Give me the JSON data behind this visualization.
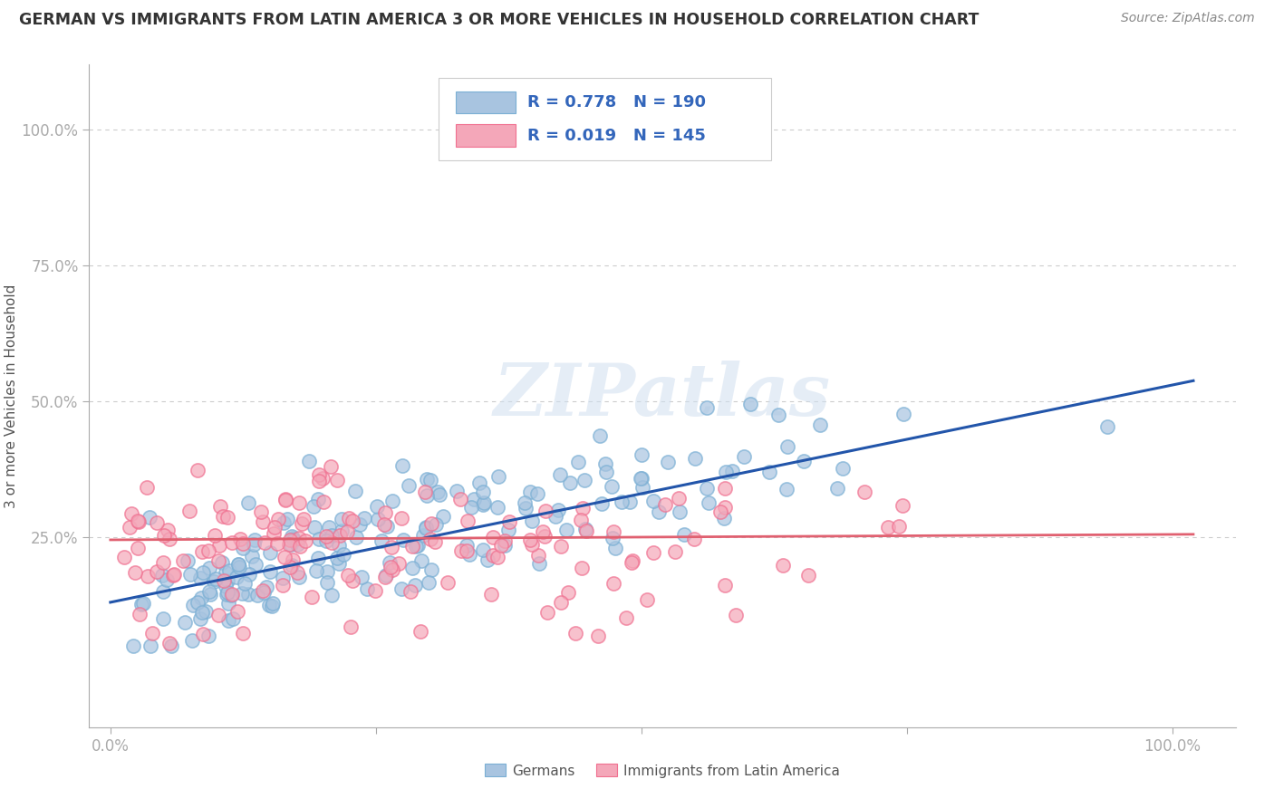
{
  "title": "GERMAN VS IMMIGRANTS FROM LATIN AMERICA 3 OR MORE VEHICLES IN HOUSEHOLD CORRELATION CHART",
  "source": "Source: ZipAtlas.com",
  "ylabel": "3 or more Vehicles in Household",
  "german_color": "#a8c4e0",
  "latin_color": "#f4a7b9",
  "german_edge_color": "#7aafd4",
  "latin_edge_color": "#f07090",
  "german_line_color": "#2255aa",
  "latin_line_color": "#e06070",
  "R_german": 0.778,
  "N_german": 190,
  "R_latin": 0.019,
  "N_latin": 145,
  "legend_label_german": "Germans",
  "legend_label_latin": "Immigrants from Latin America",
  "watermark": "ZIPatlas",
  "background_color": "#ffffff",
  "grid_color": "#cccccc",
  "title_color": "#333333",
  "label_color": "#555555",
  "blue_text_color": "#3366bb",
  "seed": 99
}
